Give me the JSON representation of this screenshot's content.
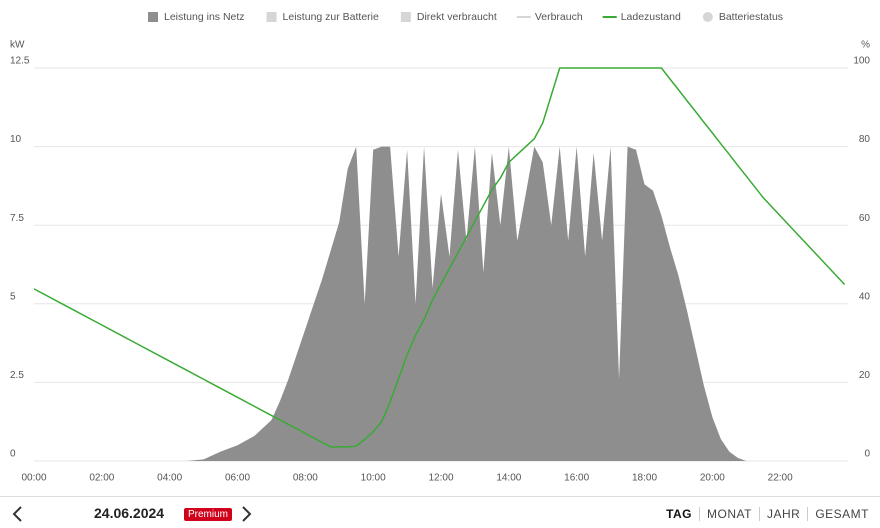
{
  "chart_data": {
    "type": "area",
    "y_unit": "kW",
    "y2_unit": "%",
    "xlim": [
      0,
      24
    ],
    "xticks": [
      {
        "value": 0,
        "label": "00:00"
      },
      {
        "value": 2,
        "label": "02:00"
      },
      {
        "value": 4,
        "label": "04:00"
      },
      {
        "value": 6,
        "label": "06:00"
      },
      {
        "value": 8,
        "label": "08:00"
      },
      {
        "value": 10,
        "label": "10:00"
      },
      {
        "value": 12,
        "label": "12:00"
      },
      {
        "value": 14,
        "label": "14:00"
      },
      {
        "value": 16,
        "label": "16:00"
      },
      {
        "value": 18,
        "label": "18:00"
      },
      {
        "value": 20,
        "label": "20:00"
      },
      {
        "value": 22,
        "label": "22:00"
      }
    ],
    "ylim": [
      0,
      12.5
    ],
    "yticks": [
      0,
      2.5,
      5,
      7.5,
      10,
      12.5
    ],
    "y2lim": [
      0,
      100
    ],
    "y2ticks": [
      0,
      20,
      40,
      60,
      80,
      100
    ],
    "grid": true,
    "x": [
      0,
      1,
      2,
      3,
      4,
      4.5,
      5,
      5.5,
      6,
      6.5,
      7,
      7.25,
      7.5,
      7.75,
      8,
      8.25,
      8.5,
      8.75,
      9,
      9.25,
      9.5,
      9.75,
      10,
      10.25,
      10.5,
      10.75,
      11,
      11.25,
      11.5,
      11.75,
      12,
      12.25,
      12.5,
      12.75,
      13,
      13.25,
      13.5,
      13.75,
      14,
      14.25,
      14.5,
      14.75,
      15,
      15.25,
      15.5,
      15.75,
      16,
      16.25,
      16.5,
      16.75,
      17,
      17.25,
      17.5,
      17.75,
      18,
      18.25,
      18.5,
      18.75,
      19,
      19.25,
      19.5,
      19.75,
      20,
      20.25,
      20.5,
      20.75,
      21,
      21.5,
      22,
      22.5,
      23,
      23.5,
      23.9
    ],
    "series": [
      {
        "name": "Leistung ins Netz",
        "color": "#8e8e8e",
        "marker": "square",
        "visible": true,
        "style": "area",
        "values": [
          0,
          0,
          0,
          0,
          0,
          0,
          0.05,
          0.3,
          0.5,
          0.8,
          1.3,
          1.9,
          2.6,
          3.4,
          4.2,
          5.0,
          5.8,
          6.7,
          7.6,
          9.3,
          10.0,
          5.0,
          9.9,
          10.0,
          10.0,
          6.5,
          9.9,
          5.0,
          10.0,
          5.5,
          8.5,
          6.5,
          9.9,
          7.0,
          10.0,
          6.0,
          9.8,
          7.5,
          10.0,
          7.0,
          8.5,
          10.0,
          9.5,
          7.5,
          10.0,
          7.0,
          10.0,
          6.5,
          9.8,
          7.0,
          10.0,
          2.6,
          10.0,
          9.9,
          8.8,
          8.6,
          7.8,
          6.8,
          5.9,
          4.8,
          3.6,
          2.4,
          1.4,
          0.7,
          0.3,
          0.1,
          0,
          0,
          0,
          0,
          0,
          0,
          0
        ]
      },
      {
        "name": "Leistung zur Batterie",
        "color": "#d6d6d6",
        "marker": "square",
        "visible": false
      },
      {
        "name": "Direkt verbraucht",
        "color": "#d6d6d6",
        "marker": "square",
        "visible": false
      },
      {
        "name": "Verbrauch",
        "color": "#d6d6d6",
        "marker": "line",
        "visible": false
      },
      {
        "name": "Ladezustand",
        "color": "#3aaa35",
        "marker": "line",
        "visible": true,
        "style": "line",
        "axis": "y2",
        "values": [
          43.8,
          39.2,
          34.6,
          30.0,
          25.4,
          23.1,
          20.8,
          18.5,
          16.2,
          13.9,
          11.6,
          10.5,
          9.3,
          8.2,
          7.0,
          5.9,
          4.7,
          3.6,
          3.6,
          3.6,
          3.8,
          5.5,
          7.4,
          10,
          15,
          21,
          27,
          32,
          36,
          41,
          45,
          49,
          53,
          57,
          61,
          65,
          69,
          72,
          76,
          78,
          80,
          82,
          86,
          93,
          100,
          100,
          100,
          100,
          100,
          100,
          100,
          100,
          100,
          100,
          100,
          100,
          100,
          97.2,
          94.5,
          91.7,
          89,
          86.2,
          83.5,
          80.7,
          78,
          75.2,
          72.5,
          67,
          62.4,
          57.8,
          53.2,
          48.6,
          44.9
        ]
      },
      {
        "name": "Batteriestatus",
        "color": "#d6d6d6",
        "marker": "circle",
        "visible": false
      }
    ]
  },
  "navigation": {
    "date": "24.06.2024",
    "badge": "Premium",
    "tabs": [
      "TAG",
      "MONAT",
      "JAHR",
      "GESAMT"
    ],
    "active_tab": 0
  }
}
